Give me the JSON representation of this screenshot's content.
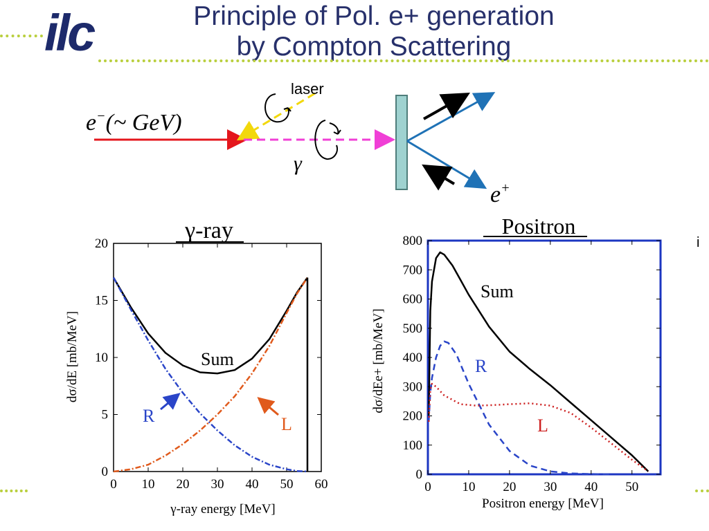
{
  "slide": {
    "logo": "ilc",
    "title_line1": "Principle of Pol. e+ generation",
    "title_line2": "by Compton Scattering",
    "stray_mark": "i"
  },
  "diagram": {
    "electron_label": "e",
    "electron_sup": "−",
    "electron_energy": "(~ GeV)",
    "laser_label": "laser",
    "gamma_label": "γ",
    "positron_label": "e",
    "positron_sup": "+"
  },
  "chart_data": [
    {
      "type": "line",
      "title": "γ-ray",
      "xlabel": "γ-ray energy [MeV]",
      "ylabel": "dσ/dE  [mb/MeV]",
      "xlim": [
        0,
        60
      ],
      "ylim": [
        0,
        20
      ],
      "xticks": [
        0,
        10,
        20,
        30,
        40,
        50,
        60
      ],
      "yticks": [
        0,
        5,
        10,
        15,
        20
      ],
      "series": [
        {
          "name": "Sum",
          "color": "#000000",
          "style": "solid",
          "x": [
            0,
            5,
            10,
            15,
            20,
            25,
            30,
            35,
            40,
            45,
            50,
            53,
            56
          ],
          "y": [
            17.0,
            14.4,
            12.1,
            10.4,
            9.3,
            8.7,
            8.6,
            8.9,
            9.9,
            11.6,
            14.1,
            15.7,
            17.0
          ]
        },
        {
          "name": "R",
          "color": "#2a45c8",
          "style": "dashdot",
          "x": [
            0,
            5,
            10,
            15,
            20,
            25,
            30,
            35,
            40,
            45,
            50,
            53,
            56
          ],
          "y": [
            17.0,
            14.2,
            11.5,
            9.0,
            6.9,
            5.1,
            3.6,
            2.3,
            1.3,
            0.6,
            0.2,
            0.05,
            0
          ]
        },
        {
          "name": "L",
          "color": "#e05a1c",
          "style": "dashdot",
          "x": [
            0,
            5,
            10,
            15,
            20,
            25,
            30,
            35,
            40,
            45,
            50,
            53,
            56
          ],
          "y": [
            0,
            0.2,
            0.6,
            1.4,
            2.4,
            3.6,
            5.0,
            6.6,
            8.6,
            11.0,
            13.9,
            15.6,
            17.0
          ]
        }
      ],
      "cutoff_x": 56,
      "annotations": [
        "Sum",
        "R",
        "L"
      ]
    },
    {
      "type": "line",
      "title": "Positron",
      "xlabel": "Positron energy [MeV]",
      "ylabel": "dσ/dEe+ [mb/MeV]",
      "xlim": [
        0,
        57
      ],
      "ylim": [
        0,
        800
      ],
      "xticks": [
        0,
        10,
        20,
        30,
        40,
        50
      ],
      "yticks": [
        0,
        100,
        200,
        300,
        400,
        500,
        600,
        700,
        800
      ],
      "series": [
        {
          "name": "Sum",
          "color": "#000000",
          "style": "solid",
          "x": [
            0.2,
            0.6,
            1,
            2,
            3,
            4,
            6,
            8,
            10,
            15,
            20,
            25,
            30,
            35,
            40,
            45,
            50,
            54
          ],
          "y": [
            200,
            560,
            660,
            740,
            760,
            752,
            715,
            665,
            615,
            505,
            420,
            360,
            305,
            245,
            185,
            125,
            65,
            10
          ]
        },
        {
          "name": "R",
          "color": "#2a45c8",
          "style": "dashed",
          "x": [
            0.2,
            0.6,
            1,
            2,
            3,
            4,
            5,
            7,
            10,
            15,
            20,
            25,
            30,
            35,
            40,
            45
          ],
          "y": [
            180,
            280,
            330,
            400,
            440,
            455,
            450,
            410,
            310,
            170,
            80,
            30,
            10,
            3,
            1,
            0
          ]
        },
        {
          "name": "L",
          "color": "#cc1f1f",
          "style": "dotted",
          "x": [
            0.2,
            0.6,
            1,
            2,
            4,
            8,
            12,
            16,
            20,
            25,
            30,
            35,
            40,
            45,
            50,
            54
          ],
          "y": [
            180,
            290,
            310,
            300,
            270,
            240,
            235,
            237,
            240,
            243,
            235,
            210,
            160,
            105,
            50,
            10
          ]
        }
      ],
      "annotations": [
        "Sum",
        "R",
        "L"
      ]
    }
  ]
}
